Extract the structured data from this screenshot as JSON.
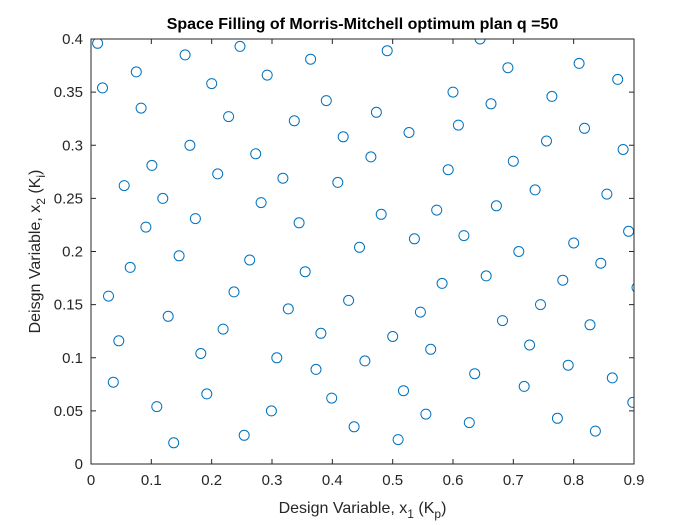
{
  "figure": {
    "title": "Space Filling of Morris-Mitchell optimum plan q =50",
    "xlabel": {
      "main": "Design Variable, x",
      "sub": "1",
      "paren_open": " (K",
      "paren_sub": "p",
      "paren_close": ")"
    },
    "ylabel": {
      "main": "Deisgn Variable, x",
      "sub": "2",
      "paren_open": " (K",
      "paren_sub": "i",
      "paren_close": ")"
    }
  },
  "colors": {
    "marker": "#0072BD",
    "axis": "#262626",
    "background": "#ffffff"
  },
  "chart_data": {
    "type": "scatter",
    "title": "Space Filling of Morris-Mitchell optimum plan q =50",
    "xlabel": "Design Variable, x1 (Kp)",
    "ylabel": "Deisgn Variable, x2 (Ki)",
    "xlim": [
      0,
      0.9
    ],
    "ylim": [
      0,
      0.4
    ],
    "xticks": [
      "0",
      "0.1",
      "0.2",
      "0.3",
      "0.4",
      "0.5",
      "0.6",
      "0.7",
      "0.8",
      "0.9"
    ],
    "yticks": [
      "0",
      "0.05",
      "0.1",
      "0.15",
      "0.2",
      "0.25",
      "0.3",
      "0.35",
      "0.4"
    ],
    "grid": false,
    "legend": "none",
    "marker": "open-circle",
    "points": [
      [
        0.011,
        0.396
      ],
      [
        0.019,
        0.354
      ],
      [
        0.029,
        0.158
      ],
      [
        0.037,
        0.077
      ],
      [
        0.046,
        0.116
      ],
      [
        0.055,
        0.262
      ],
      [
        0.065,
        0.185
      ],
      [
        0.075,
        0.369
      ],
      [
        0.083,
        0.335
      ],
      [
        0.091,
        0.223
      ],
      [
        0.101,
        0.281
      ],
      [
        0.109,
        0.054
      ],
      [
        0.119,
        0.25
      ],
      [
        0.128,
        0.139
      ],
      [
        0.137,
        0.02
      ],
      [
        0.146,
        0.196
      ],
      [
        0.156,
        0.385
      ],
      [
        0.164,
        0.3
      ],
      [
        0.173,
        0.231
      ],
      [
        0.182,
        0.104
      ],
      [
        0.192,
        0.066
      ],
      [
        0.2,
        0.358
      ],
      [
        0.21,
        0.273
      ],
      [
        0.219,
        0.127
      ],
      [
        0.228,
        0.327
      ],
      [
        0.237,
        0.162
      ],
      [
        0.247,
        0.393
      ],
      [
        0.254,
        0.027
      ],
      [
        0.263,
        0.192
      ],
      [
        0.273,
        0.292
      ],
      [
        0.282,
        0.246
      ],
      [
        0.292,
        0.366
      ],
      [
        0.299,
        0.05
      ],
      [
        0.308,
        0.1
      ],
      [
        0.318,
        0.269
      ],
      [
        0.327,
        0.146
      ],
      [
        0.337,
        0.323
      ],
      [
        0.345,
        0.227
      ],
      [
        0.355,
        0.181
      ],
      [
        0.364,
        0.381
      ],
      [
        0.373,
        0.089
      ],
      [
        0.381,
        0.123
      ],
      [
        0.39,
        0.342
      ],
      [
        0.399,
        0.062
      ],
      [
        0.409,
        0.265
      ],
      [
        0.418,
        0.308
      ],
      [
        0.427,
        0.154
      ],
      [
        0.436,
        0.035
      ],
      [
        0.445,
        0.204
      ],
      [
        0.454,
        0.097
      ],
      [
        0.464,
        0.289
      ],
      [
        0.473,
        0.331
      ],
      [
        0.481,
        0.235
      ],
      [
        0.491,
        0.389
      ],
      [
        0.5,
        0.12
      ],
      [
        0.509,
        0.023
      ],
      [
        0.518,
        0.069
      ],
      [
        0.527,
        0.312
      ],
      [
        0.536,
        0.212
      ],
      [
        0.546,
        0.143
      ],
      [
        0.555,
        0.047
      ],
      [
        0.563,
        0.108
      ],
      [
        0.573,
        0.239
      ],
      [
        0.582,
        0.17
      ],
      [
        0.592,
        0.277
      ],
      [
        0.6,
        0.35
      ],
      [
        0.609,
        0.319
      ],
      [
        0.618,
        0.215
      ],
      [
        0.627,
        0.039
      ],
      [
        0.636,
        0.085
      ],
      [
        0.645,
        0.4
      ],
      [
        0.655,
        0.177
      ],
      [
        0.663,
        0.339
      ],
      [
        0.672,
        0.243
      ],
      [
        0.682,
        0.135
      ],
      [
        0.691,
        0.373
      ],
      [
        0.7,
        0.285
      ],
      [
        0.709,
        0.2
      ],
      [
        0.718,
        0.073
      ],
      [
        0.727,
        0.112
      ],
      [
        0.736,
        0.258
      ],
      [
        0.745,
        0.15
      ],
      [
        0.755,
        0.304
      ],
      [
        0.764,
        0.346
      ],
      [
        0.773,
        0.043
      ],
      [
        0.782,
        0.173
      ],
      [
        0.791,
        0.093
      ],
      [
        0.8,
        0.208
      ],
      [
        0.809,
        0.377
      ],
      [
        0.818,
        0.316
      ],
      [
        0.827,
        0.131
      ],
      [
        0.836,
        0.031
      ],
      [
        0.845,
        0.189
      ],
      [
        0.855,
        0.254
      ],
      [
        0.864,
        0.081
      ],
      [
        0.873,
        0.362
      ],
      [
        0.882,
        0.296
      ],
      [
        0.891,
        0.219
      ],
      [
        0.898,
        0.058
      ],
      [
        0.905,
        0.166
      ]
    ]
  }
}
